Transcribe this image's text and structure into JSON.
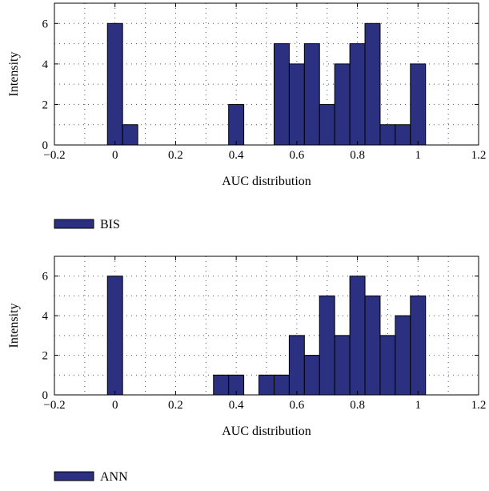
{
  "chart_data": [
    {
      "type": "bar",
      "xlabel": "AUC distribution",
      "ylabel": "Intensity",
      "xlim": [
        -0.2,
        1.2
      ],
      "ylim": [
        0,
        7
      ],
      "xticks": [
        -0.2,
        0,
        0.2,
        0.4,
        0.6,
        0.8,
        1,
        1.2
      ],
      "xtick_labels": [
        "−0.2",
        "0",
        "0.2",
        "0.4",
        "0.6",
        "0.8",
        "1",
        "1.2"
      ],
      "yticks": [
        0,
        2,
        4,
        6
      ],
      "ytick_labels": [
        "0",
        "2",
        "4",
        "6"
      ],
      "grid": true,
      "legend_position": "bottom-left",
      "series": [
        {
          "name": "BIS",
          "color": "#2b3080",
          "bin_width": 0.05,
          "bin_centers": [
            0,
            0.05,
            0.4,
            0.55,
            0.6,
            0.65,
            0.7,
            0.75,
            0.8,
            0.85,
            0.9,
            0.95,
            1.0
          ],
          "values": [
            6,
            1,
            2,
            5,
            4,
            5,
            2,
            4,
            5,
            6,
            1,
            1,
            4
          ]
        }
      ]
    },
    {
      "type": "bar",
      "xlabel": "AUC distribution",
      "ylabel": "Intensity",
      "xlim": [
        -0.2,
        1.2
      ],
      "ylim": [
        0,
        7
      ],
      "xticks": [
        -0.2,
        0,
        0.2,
        0.4,
        0.6,
        0.8,
        1,
        1.2
      ],
      "xtick_labels": [
        "−0.2",
        "0",
        "0.2",
        "0.4",
        "0.6",
        "0.8",
        "1",
        "1.2"
      ],
      "yticks": [
        0,
        2,
        4,
        6
      ],
      "ytick_labels": [
        "0",
        "2",
        "4",
        "6"
      ],
      "grid": true,
      "legend_position": "bottom-left",
      "series": [
        {
          "name": "ANN",
          "color": "#2b3080",
          "bin_width": 0.05,
          "bin_centers": [
            0,
            0.35,
            0.4,
            0.5,
            0.55,
            0.6,
            0.65,
            0.7,
            0.75,
            0.8,
            0.85,
            0.9,
            0.95,
            1.0
          ],
          "values": [
            6,
            1,
            1,
            1,
            1,
            3,
            2,
            5,
            3,
            6,
            5,
            3,
            4,
            5
          ]
        }
      ]
    }
  ]
}
